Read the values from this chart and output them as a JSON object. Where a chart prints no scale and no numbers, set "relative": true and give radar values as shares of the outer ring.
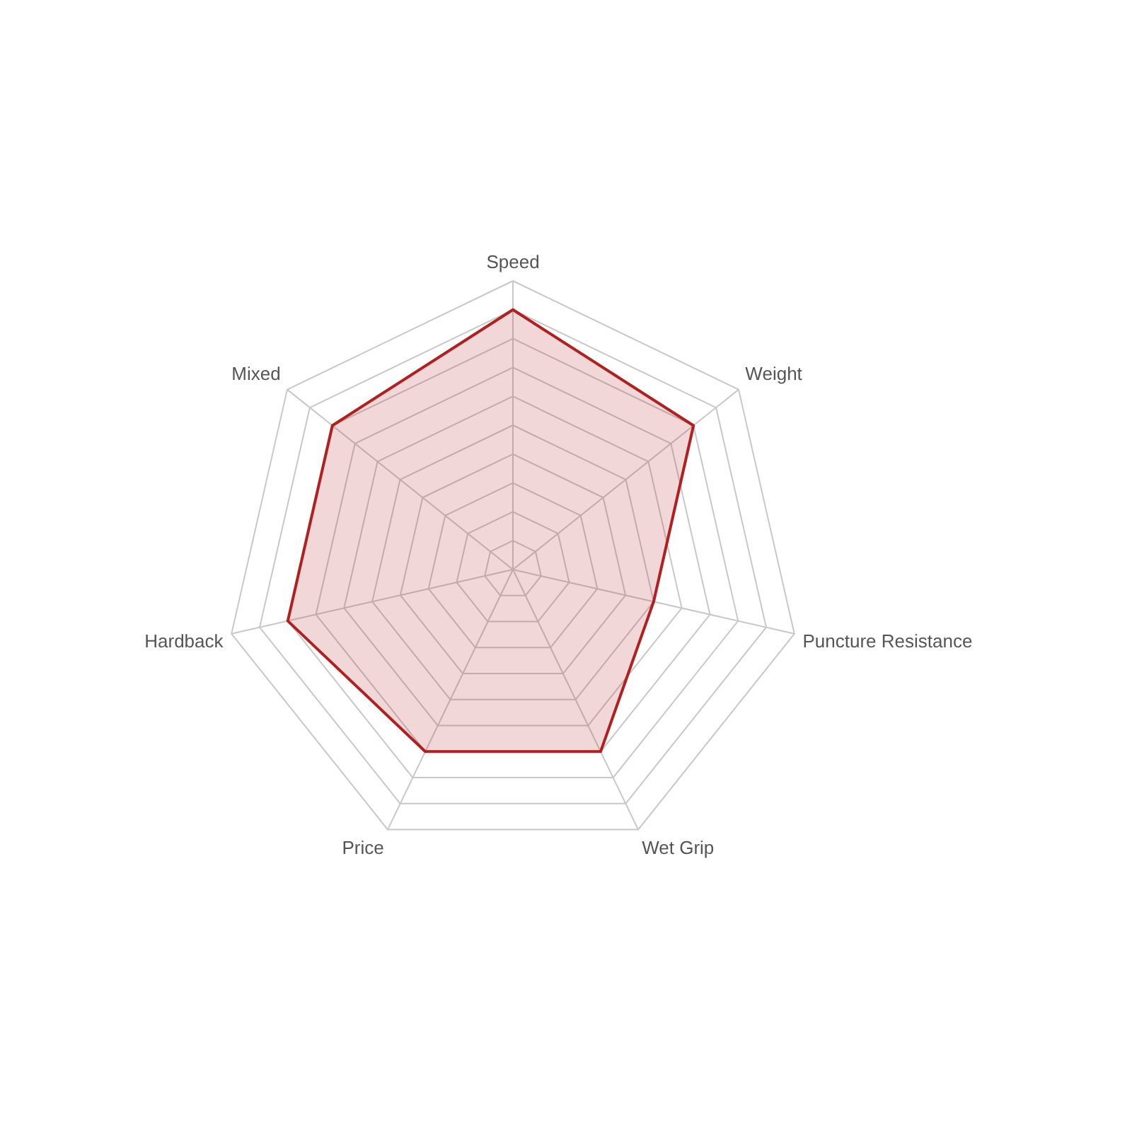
{
  "chart_data": {
    "type": "radar",
    "categories": [
      "Speed",
      "Weight",
      "Puncture Resistance",
      "Wet Grip",
      "Price",
      "Hardback",
      "Mixed"
    ],
    "relative": true,
    "grid": true,
    "series": [
      {
        "color": "#b21f1f",
        "values": [
          0.9,
          0.8,
          0.5,
          0.7,
          0.7,
          0.8,
          0.8
        ]
      }
    ]
  }
}
